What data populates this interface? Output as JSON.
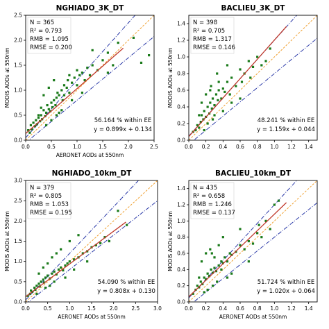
{
  "chart_data": [
    {
      "type": "scatter",
      "title": "NGHIADO_3K_DT",
      "xlabel": "AERONET AODs at 550nm",
      "ylabel": "MODIS AODs at 550nm",
      "xlim": [
        0,
        2.5
      ],
      "ylim": [
        0,
        2.5
      ],
      "xticks": [
        "0.0",
        "0.5",
        "1.0",
        "1.5",
        "2.0",
        "2.5"
      ],
      "yticks": [
        "0.0",
        "0.5",
        "1.0",
        "1.5",
        "2.0",
        "2.5"
      ],
      "stats": [
        "N = 365",
        "R² = 0.793",
        "RMB = 1.095",
        "RMSE = 0.200"
      ],
      "ee_text": "56.164 % within EE",
      "fit_text": "y = 0.899x + 0.134",
      "fit": {
        "slope": 0.899,
        "intercept": 0.134
      },
      "grid": false,
      "series": [
        {
          "x": [
            0.05,
            0.08,
            0.1,
            0.12,
            0.15,
            0.18,
            0.2,
            0.22,
            0.25,
            0.28,
            0.3,
            0.32,
            0.35,
            0.38,
            0.4,
            0.42,
            0.45,
            0.48,
            0.5,
            0.52,
            0.55,
            0.58,
            0.6,
            0.62,
            0.65,
            0.7,
            0.72,
            0.75,
            0.8,
            0.82,
            0.85,
            0.9,
            0.95,
            1.0,
            1.05,
            1.1,
            1.15,
            1.2,
            1.25,
            1.3,
            1.4,
            1.5,
            1.6,
            1.7,
            1.8,
            2.1,
            2.25,
            2.4,
            0.35,
            0.45,
            0.55,
            0.6,
            0.7,
            0.9,
            1.1,
            0.3,
            0.4,
            0.5,
            0.65,
            0.25,
            0.75,
            0.85,
            1.0,
            1.3,
            1.6
          ],
          "y": [
            0.2,
            0.15,
            0.3,
            0.22,
            0.35,
            0.28,
            0.4,
            0.32,
            0.45,
            0.38,
            0.5,
            0.42,
            0.6,
            0.48,
            0.55,
            0.7,
            0.62,
            0.58,
            0.75,
            0.66,
            0.8,
            0.7,
            0.85,
            0.95,
            0.9,
            1.0,
            0.8,
            1.1,
            1.05,
            1.2,
            0.95,
            1.15,
            1.25,
            1.1,
            1.3,
            1.35,
            1.2,
            1.45,
            1.3,
            1.5,
            1.4,
            1.6,
            1.75,
            1.5,
            1.95,
            2.05,
            1.55,
            1.7,
            0.9,
            1.05,
            1.2,
            0.5,
            0.6,
            0.8,
            0.95,
            0.65,
            0.3,
            0.4,
            0.55,
            0.5,
            0.9,
            1.3,
            1.4,
            1.8,
            1.35
          ]
        }
      ]
    },
    {
      "type": "scatter",
      "title": "BACLIEU_3K_DT",
      "xlabel": "",
      "ylabel": "MODIS AODs at 550nm",
      "xlim": [
        0,
        1.5
      ],
      "ylim": [
        0,
        1.5
      ],
      "xticks": [
        "0.0",
        "0.2",
        "0.4",
        "0.6",
        "0.8",
        "1.0",
        "1.2",
        "1.4"
      ],
      "yticks": [
        "0.0",
        "0.2",
        "0.4",
        "0.6",
        "0.8",
        "1.0",
        "1.2",
        "1.4"
      ],
      "stats": [
        "N = 398",
        "R² = 0.705",
        "RMB = 1.317",
        "RMSE = 0.146"
      ],
      "ee_text": "48.241 % within EE",
      "fit_text": "y = 1.159x + 0.044",
      "fit": {
        "slope": 1.159,
        "intercept": 0.044
      },
      "grid": false,
      "series": [
        {
          "x": [
            0.05,
            0.08,
            0.1,
            0.12,
            0.14,
            0.15,
            0.17,
            0.18,
            0.2,
            0.22,
            0.24,
            0.25,
            0.27,
            0.28,
            0.3,
            0.32,
            0.34,
            0.35,
            0.38,
            0.4,
            0.42,
            0.45,
            0.48,
            0.5,
            0.55,
            0.6,
            0.62,
            0.65,
            0.7,
            0.75,
            0.8,
            0.85,
            0.9,
            0.95,
            0.15,
            0.2,
            0.25,
            0.3,
            0.35,
            0.18,
            0.22,
            0.28,
            0.4,
            0.45,
            0.5,
            0.33,
            0.12,
            0.26,
            0.6,
            0.72
          ],
          "y": [
            0.1,
            0.12,
            0.18,
            0.15,
            0.22,
            0.3,
            0.25,
            0.35,
            0.28,
            0.4,
            0.32,
            0.45,
            0.38,
            0.5,
            0.42,
            0.55,
            0.48,
            0.6,
            0.5,
            0.62,
            0.58,
            0.7,
            0.55,
            0.75,
            0.65,
            0.85,
            0.7,
            0.8,
            0.95,
            0.88,
            1.0,
            0.9,
            0.95,
            1.1,
            0.45,
            0.55,
            0.6,
            0.3,
            0.7,
            0.12,
            0.2,
            0.25,
            0.35,
            0.9,
            0.45,
            0.8,
            0.3,
            0.65,
            0.5,
            0.75
          ]
        }
      ]
    },
    {
      "type": "scatter",
      "title": "NGHIADO_10km_DT",
      "xlabel": "AERONET AODs at 550nm",
      "ylabel": "MODIS AODs at 550nm",
      "xlim": [
        0,
        3.0
      ],
      "ylim": [
        0,
        3.0
      ],
      "xticks": [
        "0.0",
        "0.5",
        "1.0",
        "1.5",
        "2.0",
        "2.5",
        "3.0"
      ],
      "yticks": [
        "0.0",
        "0.5",
        "1.0",
        "1.5",
        "2.0",
        "2.5",
        "3.0"
      ],
      "stats": [
        "N = 379",
        "R² = 0.805",
        "RMB = 1.053",
        "RMSE = 0.195"
      ],
      "ee_text": "54.090 % within EE",
      "fit_text": "y = 0.808x + 0.130",
      "fit": {
        "slope": 0.808,
        "intercept": 0.13
      },
      "grid": false,
      "series": [
        {
          "x": [
            0.05,
            0.1,
            0.12,
            0.15,
            0.2,
            0.22,
            0.25,
            0.3,
            0.32,
            0.35,
            0.4,
            0.42,
            0.45,
            0.5,
            0.55,
            0.6,
            0.65,
            0.7,
            0.75,
            0.8,
            0.85,
            0.9,
            0.95,
            1.0,
            1.1,
            1.2,
            1.3,
            1.4,
            1.5,
            1.6,
            1.7,
            1.8,
            1.9,
            2.1,
            2.3,
            0.3,
            0.4,
            0.5,
            0.6,
            0.7,
            0.8,
            1.0,
            1.2,
            0.25,
            0.55,
            0.9,
            1.1,
            1.4,
            0.45,
            0.65
          ],
          "y": [
            0.15,
            0.2,
            0.28,
            0.25,
            0.35,
            0.3,
            0.4,
            0.45,
            0.38,
            0.5,
            0.55,
            0.48,
            0.6,
            0.65,
            0.58,
            0.7,
            0.75,
            0.68,
            0.8,
            0.85,
            0.78,
            0.9,
            0.95,
            1.0,
            1.05,
            1.1,
            1.2,
            1.25,
            1.35,
            1.4,
            1.45,
            1.6,
            1.5,
            2.25,
            1.9,
            0.7,
            0.85,
            0.95,
            1.1,
            1.2,
            1.3,
            1.5,
            1.65,
            0.2,
            0.4,
            0.6,
            0.8,
            1.0,
            0.35,
            0.5
          ]
        }
      ]
    },
    {
      "type": "scatter",
      "title": "BACLIEU_10km_DT",
      "xlabel": "AERONET AODs at 550nm",
      "ylabel": "MODIS AODs at 550nm",
      "xlim": [
        0,
        1.5
      ],
      "ylim": [
        0,
        1.5
      ],
      "xticks": [
        "0.0",
        "0.2",
        "0.4",
        "0.6",
        "0.8",
        "1.0",
        "1.2",
        "1.4"
      ],
      "yticks": [
        "0.0",
        "0.2",
        "0.4",
        "0.6",
        "0.8",
        "1.0",
        "1.2",
        "1.4"
      ],
      "stats": [
        "N = 435",
        "R² = 0.658",
        "RMB = 1.246",
        "RMSE = 0.137"
      ],
      "ee_text": "51.724 % within EE",
      "fit_text": "y = 1.020x + 0.064",
      "fit": {
        "slope": 1.02,
        "intercept": 0.064
      },
      "grid": false,
      "series": [
        {
          "x": [
            0.05,
            0.08,
            0.1,
            0.12,
            0.14,
            0.16,
            0.18,
            0.2,
            0.22,
            0.24,
            0.26,
            0.28,
            0.3,
            0.32,
            0.35,
            0.38,
            0.4,
            0.42,
            0.45,
            0.48,
            0.5,
            0.55,
            0.6,
            0.65,
            0.7,
            0.75,
            0.8,
            0.85,
            0.9,
            0.95,
            1.0,
            1.05,
            0.15,
            0.2,
            0.25,
            0.3,
            0.35,
            0.4,
            0.18,
            0.22,
            0.28,
            0.33,
            0.5,
            0.6,
            0.45,
            0.12,
            0.27,
            0.7,
            0.82,
            0.38
          ],
          "y": [
            0.1,
            0.15,
            0.2,
            0.18,
            0.25,
            0.22,
            0.3,
            0.28,
            0.35,
            0.32,
            0.4,
            0.36,
            0.42,
            0.38,
            0.45,
            0.5,
            0.48,
            0.55,
            0.5,
            0.6,
            0.58,
            0.62,
            0.7,
            0.65,
            0.75,
            0.72,
            0.85,
            0.8,
            1.0,
            0.9,
            1.2,
            1.25,
            0.5,
            0.6,
            0.65,
            0.55,
            0.7,
            0.8,
            0.12,
            0.15,
            0.2,
            0.25,
            0.35,
            0.9,
            0.3,
            0.3,
            0.6,
            0.5,
            0.95,
            0.4
          ]
        }
      ]
    }
  ],
  "colors": {
    "points": "#1a7a1a",
    "fit_line": "#c0392b",
    "ee_lines": "#2b3aa8",
    "one_to_one": "#f0a030",
    "frame": "#000000"
  }
}
